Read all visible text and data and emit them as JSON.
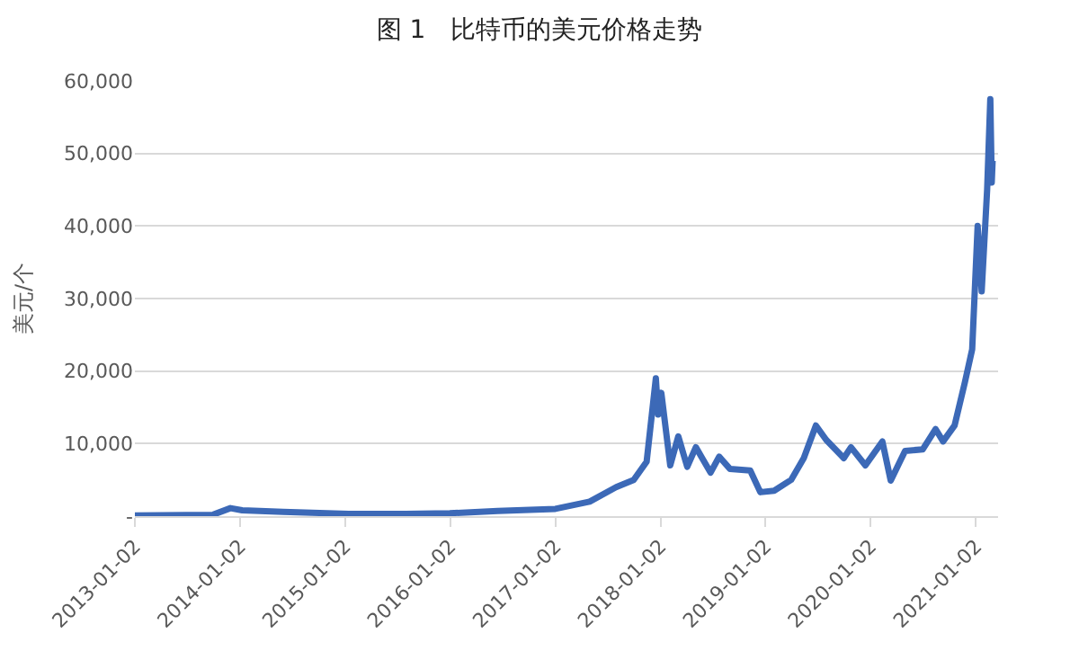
{
  "chart_data": {
    "type": "line",
    "title": "图 1　比特币的美元价格走势",
    "ylabel": "美元/个",
    "x": [
      "2013-01-02",
      "2013-10-01",
      "2013-11-30",
      "2014-01-10",
      "2014-06-01",
      "2015-01-15",
      "2015-08-01",
      "2016-01-01",
      "2016-06-15",
      "2017-01-02",
      "2017-05-01",
      "2017-08-01",
      "2017-10-01",
      "2017-11-15",
      "2017-12-17",
      "2017-12-25",
      "2018-01-05",
      "2018-02-05",
      "2018-03-05",
      "2018-04-05",
      "2018-05-05",
      "2018-06-25",
      "2018-07-25",
      "2018-09-01",
      "2018-11-10",
      "2018-12-15",
      "2019-02-01",
      "2019-04-01",
      "2019-05-15",
      "2019-06-26",
      "2019-08-01",
      "2019-10-01",
      "2019-10-26",
      "2019-12-15",
      "2020-02-12",
      "2020-03-12",
      "2020-05-01",
      "2020-07-01",
      "2020-08-15",
      "2020-09-10",
      "2020-10-20",
      "2020-11-25",
      "2020-12-20",
      "2021-01-08",
      "2021-01-22",
      "2021-02-10",
      "2021-02-21",
      "2021-02-26",
      "2021-03-01"
    ],
    "series": [
      {
        "color": "#3c69b7",
        "values": [
          100,
          200,
          1100,
          800,
          600,
          300,
          300,
          400,
          700,
          1000,
          2000,
          4000,
          5000,
          7500,
          19000,
          14000,
          17000,
          7000,
          11000,
          6800,
          9500,
          6000,
          8200,
          6500,
          6300,
          3300,
          3500,
          5000,
          8000,
          12500,
          10500,
          8000,
          9500,
          7000,
          10300,
          4900,
          9000,
          9200,
          12000,
          10300,
          12500,
          18500,
          23000,
          40000,
          31000,
          45000,
          57500,
          46000,
          49000
        ]
      }
    ],
    "xlim": [
      "2013-01-02",
      "2021-03-20"
    ],
    "xticks": [
      "2013-01-02",
      "2014-01-02",
      "2015-01-02",
      "2016-01-02",
      "2017-01-02",
      "2018-01-02",
      "2019-01-02",
      "2020-01-02",
      "2021-01-02"
    ],
    "ylim": [
      0,
      60000
    ],
    "yticks": [
      {
        "value": 0,
        "label": "-"
      },
      {
        "value": 10000,
        "label": "10,000"
      },
      {
        "value": 20000,
        "label": "20,000"
      },
      {
        "value": 30000,
        "label": "30,000"
      },
      {
        "value": 40000,
        "label": "40,000"
      },
      {
        "value": 50000,
        "label": "50,000"
      },
      {
        "value": 60000,
        "label": "60,000"
      }
    ],
    "grid": "y",
    "marker": "none",
    "line_style": "solid"
  }
}
